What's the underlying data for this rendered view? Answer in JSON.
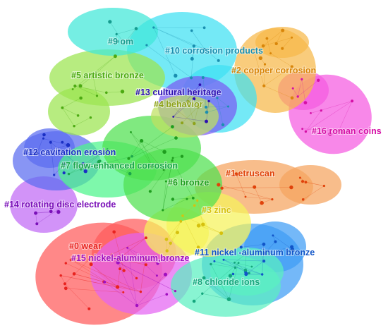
{
  "clusters": [
    {
      "id": "c0",
      "label": "#0 wear",
      "color": "#e8231f",
      "fill": "#ff5a5a"
    },
    {
      "id": "c1",
      "label": "#1 etruscan",
      "color": "#e0420a",
      "fill": "#f5a35e"
    },
    {
      "id": "c2",
      "label": "#2 copper corrosion",
      "color": "#d9860a",
      "fill": "#f7b84a"
    },
    {
      "id": "c3",
      "label": "#3 zinc",
      "color": "#d6c10e",
      "fill": "#f5f25a"
    },
    {
      "id": "c4",
      "label": "#4 behavior",
      "color": "#8ea31b",
      "fill": "#bfe060"
    },
    {
      "id": "c5",
      "label": "#5 artistic bronze",
      "color": "#4caa12",
      "fill": "#9be44f"
    },
    {
      "id": "c6",
      "label": "#6 bronze",
      "color": "#1f9e1f",
      "fill": "#4fe04f"
    },
    {
      "id": "c7",
      "label": "#7 flow-enhanced corrosion",
      "color": "#1aa64b",
      "fill": "#4cf58a"
    },
    {
      "id": "c8",
      "label": "#8 chloride ions",
      "color": "#14a67c",
      "fill": "#5af0c0"
    },
    {
      "id": "c9",
      "label": "#9 om",
      "color": "#169c8f",
      "fill": "#40e8d8"
    },
    {
      "id": "c10",
      "label": "#10 corrosion products",
      "color": "#1a8fb0",
      "fill": "#3fe0f2"
    },
    {
      "id": "c11",
      "label": "#11 nickel -aluminum bronze",
      "color": "#1155c8",
      "fill": "#3f9cf5"
    },
    {
      "id": "c12",
      "label": "#12 cavitation erosion",
      "color": "#1a2fc4",
      "fill": "#5a6cf0"
    },
    {
      "id": "c13",
      "label": "#13 cultural heritage",
      "color": "#2d0fb0",
      "fill": "#7a5cf2"
    },
    {
      "id": "c14",
      "label": "#14 rotating disc electrode",
      "color": "#7a10b8",
      "fill": "#c06af5"
    },
    {
      "id": "c15",
      "label": "#15 nickel-aluminum,bronze",
      "color": "#a010c0",
      "fill": "#e464f2"
    },
    {
      "id": "c16",
      "label": "#16 roman coins",
      "color": "#d510a6",
      "fill": "#f55ae0"
    }
  ]
}
